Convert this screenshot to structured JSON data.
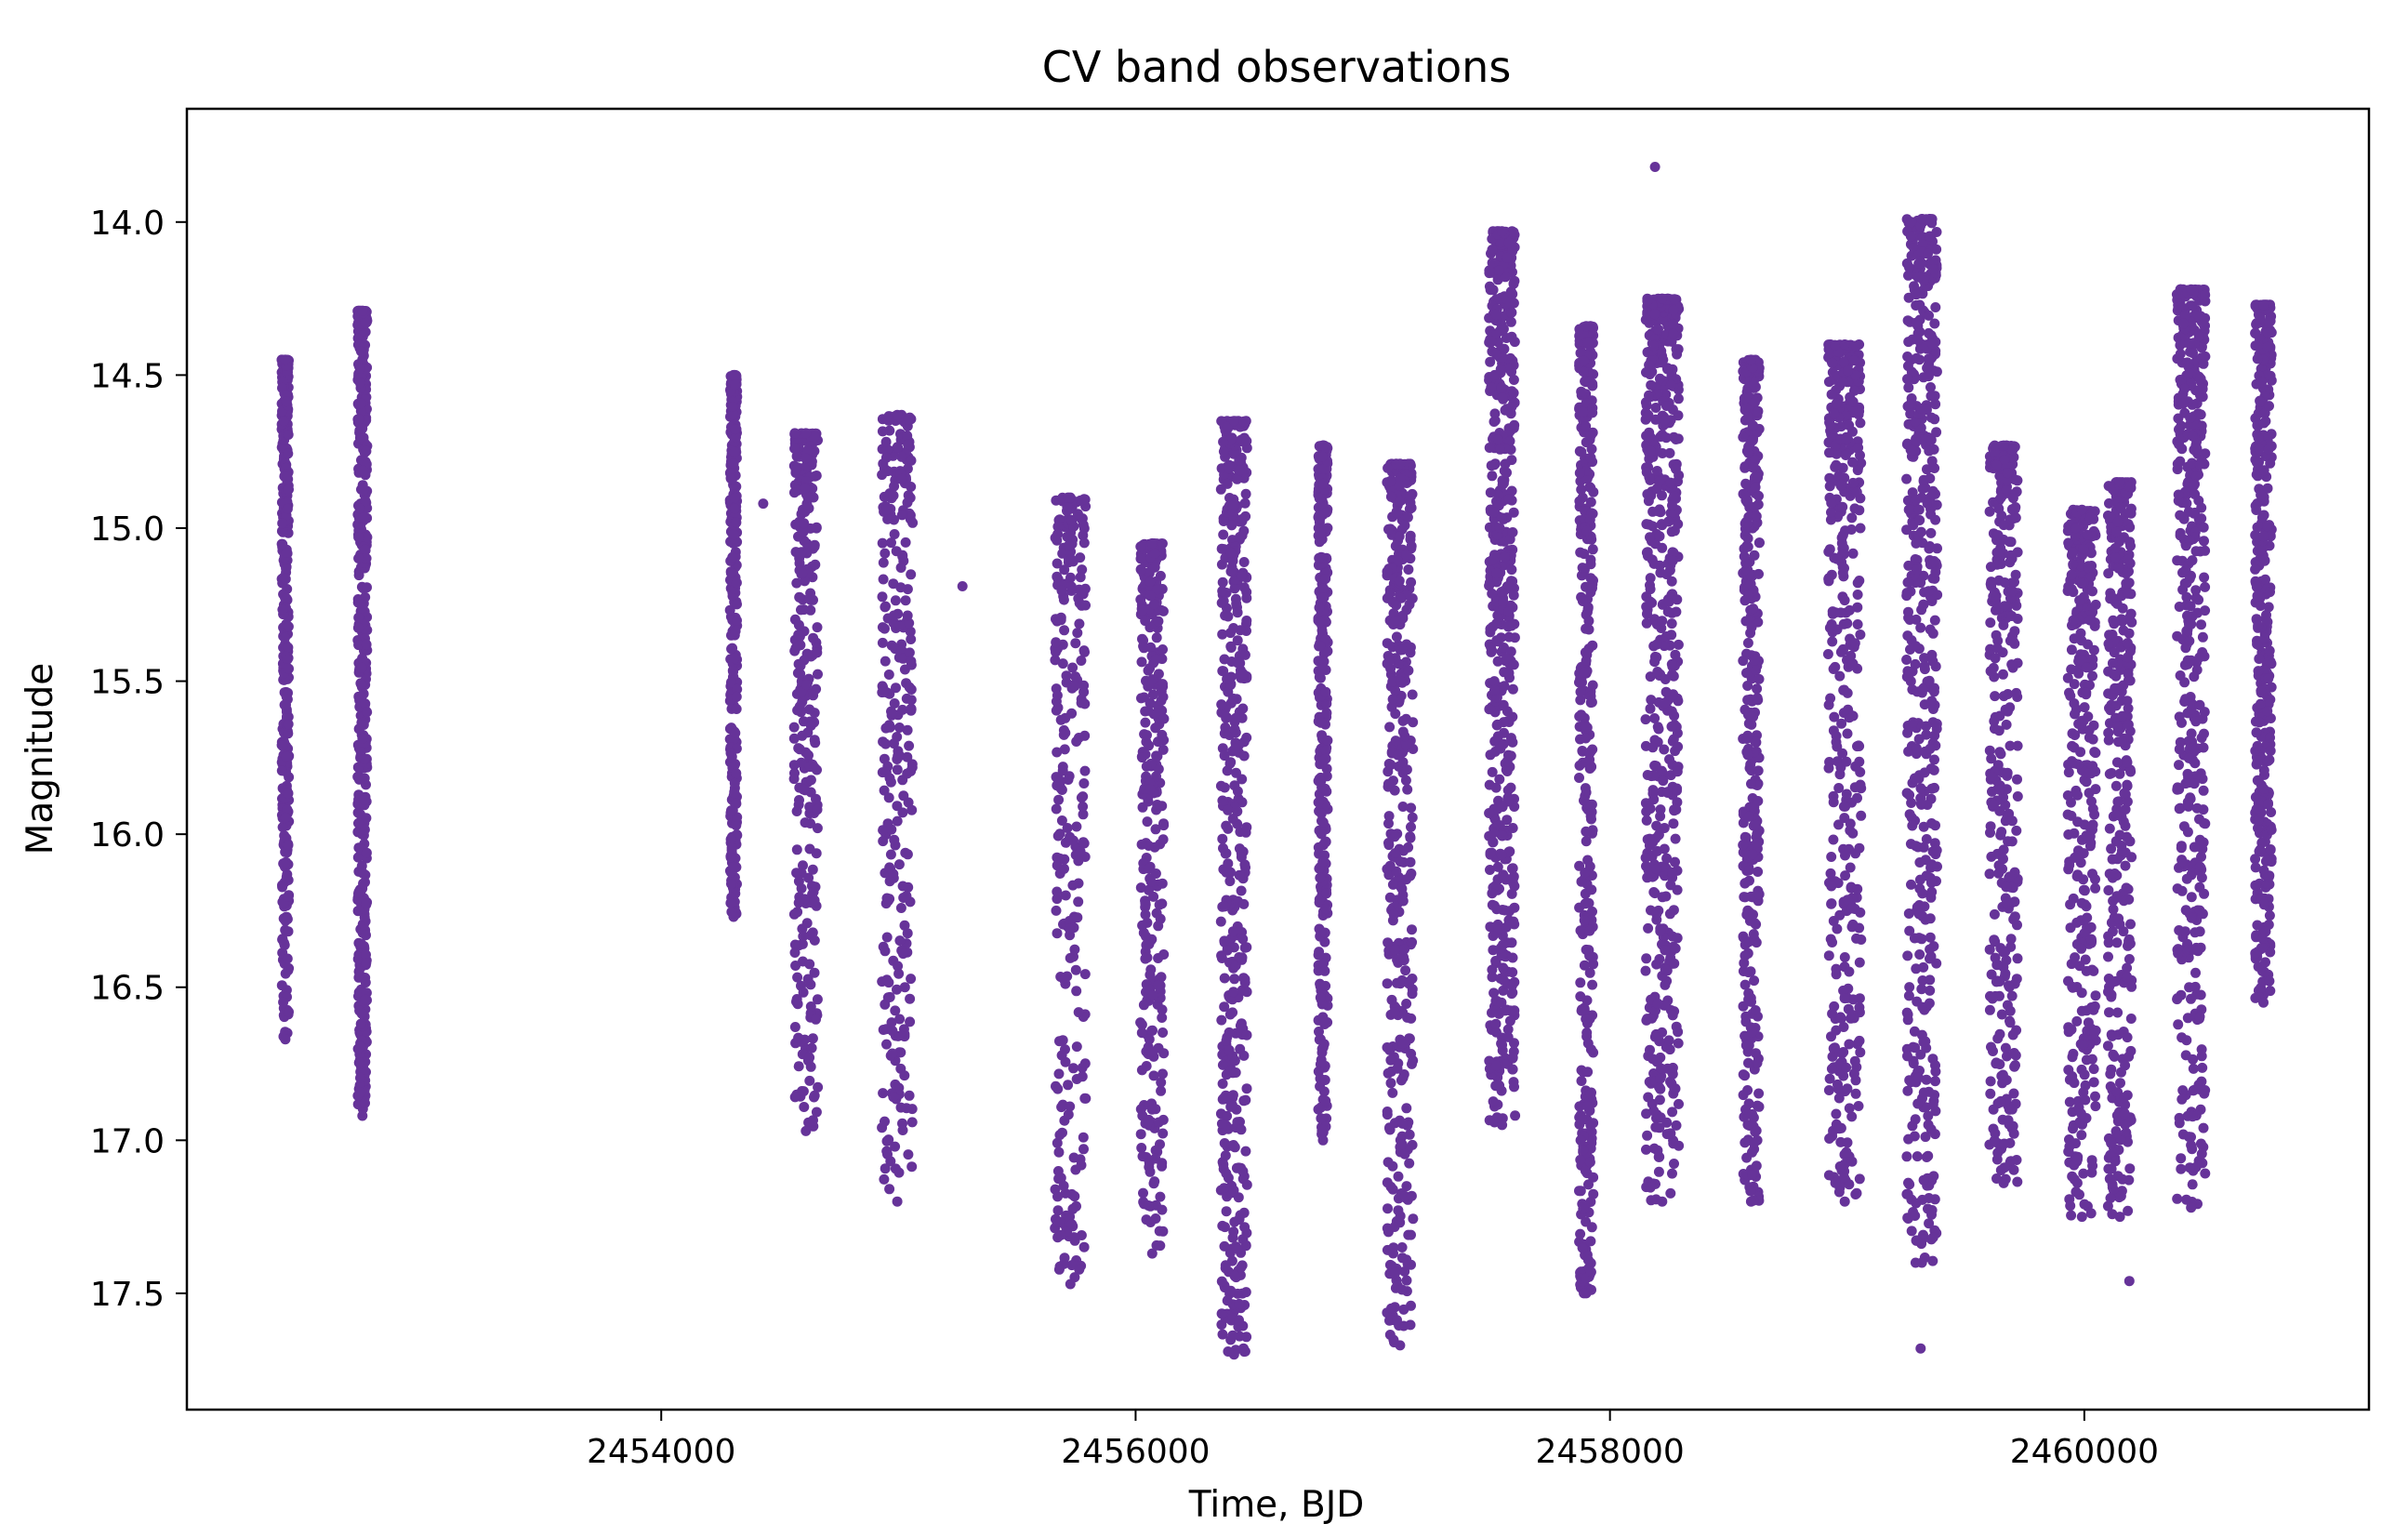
{
  "chart_data": {
    "type": "scatter",
    "title": "CV band observations",
    "xlabel": "Time, BJD",
    "ylabel": "Magnitude",
    "xlim": [
      2452000,
      2461200
    ],
    "ylim": [
      17.88,
      13.63
    ],
    "y_inverted": true,
    "x_ticks": [
      2454000,
      2456000,
      2458000,
      2460000
    ],
    "y_ticks": [
      14.0,
      14.5,
      15.0,
      15.5,
      16.0,
      16.5,
      17.0,
      17.5
    ],
    "x_tick_labels": [
      "2454000",
      "2456000",
      "2458000",
      "2460000"
    ],
    "y_tick_labels": [
      "14.0",
      "14.5",
      "15.0",
      "15.5",
      "16.0",
      "16.5",
      "17.0",
      "17.5"
    ],
    "grid": false,
    "marker_color": "#663399",
    "segments": [
      {
        "x": [
          2452400,
          2452430
        ],
        "ymin": 14.45,
        "ymax": 16.67,
        "dense": 0.55
      },
      {
        "x": [
          2452720,
          2452760
        ],
        "ymin": 14.29,
        "ymax": 16.92,
        "dense": 0.9
      },
      {
        "x": [
          2454290,
          2454320
        ],
        "ymin": 14.5,
        "ymax": 16.27,
        "dense": 0.5
      },
      {
        "x": [
          2454560,
          2454660
        ],
        "ymin": 14.69,
        "ymax": 16.97,
        "dense": 0.4
      },
      {
        "x": [
          2454930,
          2455060
        ],
        "ymin": 14.63,
        "ymax": 17.2,
        "dense": 0.4
      },
      {
        "x": [
          2455660,
          2455790
        ],
        "ymin": 14.9,
        "ymax": 17.47,
        "dense": 0.35
      },
      {
        "x": [
          2456020,
          2456120
        ],
        "ymin": 15.05,
        "ymax": 17.37,
        "dense": 0.45
      },
      {
        "x": [
          2456360,
          2456470
        ],
        "ymin": 14.65,
        "ymax": 17.7,
        "dense": 0.8
      },
      {
        "x": [
          2456770,
          2456810
        ],
        "ymin": 14.73,
        "ymax": 17.0,
        "dense": 0.4
      },
      {
        "x": [
          2457060,
          2457170
        ],
        "ymin": 14.79,
        "ymax": 17.67,
        "dense": 0.65
      },
      {
        "x": [
          2457490,
          2457600
        ],
        "ymin": 14.03,
        "ymax": 16.95,
        "dense": 1.0
      },
      {
        "x": [
          2457870,
          2457930
        ],
        "ymin": 14.34,
        "ymax": 17.5,
        "dense": 0.6
      },
      {
        "x": [
          2458150,
          2458290
        ],
        "ymin": 14.25,
        "ymax": 17.2,
        "dense": 1.0
      },
      {
        "x": [
          2458560,
          2458630
        ],
        "ymin": 14.45,
        "ymax": 17.2,
        "dense": 0.6
      },
      {
        "x": [
          2458920,
          2459060
        ],
        "ymin": 14.4,
        "ymax": 17.2,
        "dense": 0.7
      },
      {
        "x": [
          2459250,
          2459380
        ],
        "ymin": 13.99,
        "ymax": 17.4,
        "dense": 0.9
      },
      {
        "x": [
          2459600,
          2459720
        ],
        "ymin": 14.73,
        "ymax": 17.14,
        "dense": 0.5
      },
      {
        "x": [
          2459930,
          2460050
        ],
        "ymin": 14.94,
        "ymax": 17.25,
        "dense": 0.5
      },
      {
        "x": [
          2460100,
          2460200
        ],
        "ymin": 14.85,
        "ymax": 17.25,
        "dense": 0.5
      },
      {
        "x": [
          2460390,
          2460510
        ],
        "ymin": 14.22,
        "ymax": 17.22,
        "dense": 0.8
      },
      {
        "x": [
          2460720,
          2460790
        ],
        "ymin": 14.27,
        "ymax": 16.55,
        "dense": 0.6
      }
    ],
    "outliers": [
      {
        "x": 2454430,
        "y": 14.92
      },
      {
        "x": 2455270,
        "y": 15.19
      },
      {
        "x": 2458190,
        "y": 13.82
      },
      {
        "x": 2459310,
        "y": 17.68
      },
      {
        "x": 2457890,
        "y": 17.5
      },
      {
        "x": 2460190,
        "y": 17.46
      },
      {
        "x": 2457090,
        "y": 17.66
      },
      {
        "x": 2456390,
        "y": 17.69
      }
    ]
  }
}
